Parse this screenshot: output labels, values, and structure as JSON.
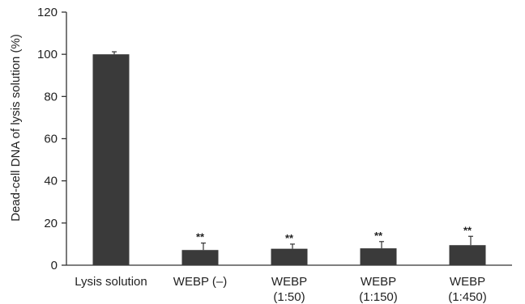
{
  "chart_data": {
    "type": "bar",
    "title": "",
    "xlabel": "",
    "ylabel": "Dead-cell DNA of lysis solution (%)",
    "ylim": [
      0,
      120
    ],
    "yticks": [
      "0",
      "20",
      "40",
      "60",
      "80",
      "100",
      "120"
    ],
    "grid": false,
    "legend": "none",
    "bar_color": "#3a3a3a",
    "categories": [
      [
        "Lysis solution"
      ],
      [
        "WEBP (–)"
      ],
      [
        "WEBP",
        "(1:50)"
      ],
      [
        "WEBP",
        "(1:150)"
      ],
      [
        "WEBP",
        "(1:450)"
      ]
    ],
    "values": [
      100,
      7.2,
      7.8,
      8.0,
      9.5
    ],
    "errors": [
      1.2,
      3.3,
      2.2,
      3.2,
      4.2
    ],
    "significance": [
      "",
      "**",
      "**",
      "**",
      "**"
    ]
  }
}
